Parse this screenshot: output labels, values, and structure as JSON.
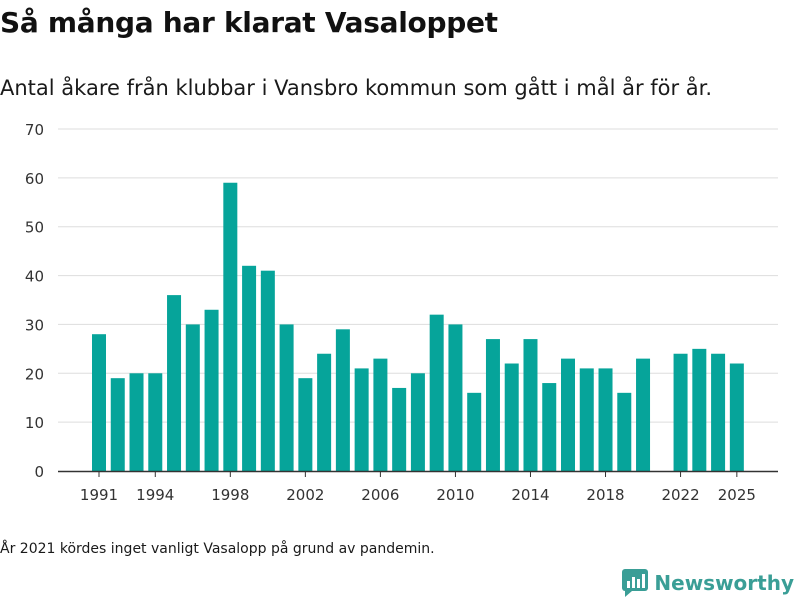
{
  "title": "Så många har klarat Vasaloppet",
  "subtitle": "Antal åkare från klubbar i Vansbro kommun som gått i mål år för år.",
  "note": "År 2021 kördes inget vanligt Vasalopp på grund av pandemin.",
  "brand": {
    "name": "Newsworthy",
    "icon": "newsworthy-logo-icon",
    "color": "#3a9e96"
  },
  "colors": {
    "bar": "#06a49a",
    "grid": "#dddddd",
    "axis": "#333333",
    "text": "#333333"
  },
  "chart_data": {
    "type": "bar",
    "title": "Så många har klarat Vasaloppet",
    "xlabel": "",
    "ylabel": "",
    "ylim": [
      0,
      70
    ],
    "yticks": [
      0,
      10,
      20,
      30,
      40,
      50,
      60,
      70
    ],
    "xticks": [
      1991,
      1994,
      1998,
      2002,
      2006,
      2010,
      2014,
      2018,
      2022,
      2025
    ],
    "grid": true,
    "categories": [
      1991,
      1992,
      1993,
      1994,
      1995,
      1996,
      1997,
      1998,
      1999,
      2000,
      2001,
      2002,
      2003,
      2004,
      2005,
      2006,
      2007,
      2008,
      2009,
      2010,
      2011,
      2012,
      2013,
      2014,
      2015,
      2016,
      2017,
      2018,
      2019,
      2020,
      2021,
      2022,
      2023,
      2024,
      2025
    ],
    "values": [
      28,
      19,
      20,
      20,
      36,
      30,
      33,
      59,
      42,
      41,
      30,
      19,
      24,
      29,
      21,
      23,
      17,
      20,
      32,
      30,
      16,
      27,
      22,
      27,
      18,
      23,
      21,
      21,
      16,
      23,
      null,
      24,
      25,
      24,
      22
    ]
  }
}
